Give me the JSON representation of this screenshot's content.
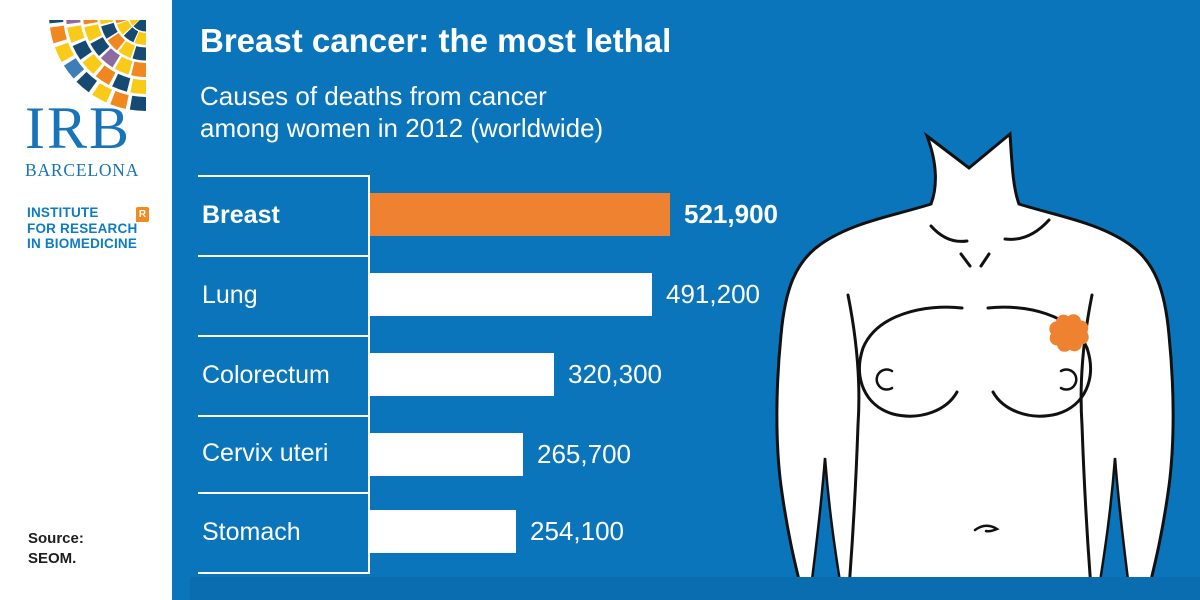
{
  "brand": {
    "logo_acronym": "IRB",
    "logo_city": "BARCELONA",
    "institute_lines": [
      "INSTITUTE",
      "FOR RESEARCH",
      "IN BIOMEDICINE"
    ],
    "registered_mark": "R",
    "logo_blue": "#1874B8",
    "institute_blue": "#0C7CC4",
    "mosaic_palette": {
      "navy": "#164A72",
      "yellow": "#F9CA18",
      "orange": "#F0871F",
      "purple": "#8C6BA1",
      "steelblue": "#3C7EB5"
    }
  },
  "header": {
    "title": "Breast cancer: the most lethal",
    "subtitle_line1": "Causes of deaths from cancer",
    "subtitle_line2": "among women in 2012 (worldwide)"
  },
  "source": {
    "label": "Source:",
    "name": "SEOM."
  },
  "chart_data": {
    "type": "bar",
    "orientation": "horizontal",
    "title": "Breast cancer: the most lethal",
    "subtitle": "Causes of deaths from cancer among women in 2012 (worldwide)",
    "categories": [
      "Breast",
      "Lung",
      "Colorectum",
      "Cervix uteri",
      "Stomach"
    ],
    "values": [
      521900,
      491200,
      320300,
      265700,
      254100
    ],
    "value_labels": [
      "521,900",
      "491,200",
      "320,300",
      "265,700",
      "254,100"
    ],
    "highlight_index": 0,
    "highlight_color": "#EE8230",
    "bar_color": "#FFFFFF",
    "xlim": [
      0,
      521900
    ],
    "grid": "row-separators",
    "legend": "none"
  },
  "illustration": {
    "name": "female-torso",
    "tumor_color": "#EE8230",
    "outline_color": "#111111"
  },
  "colors": {
    "background": "#0A75BB",
    "sidebar": "#FFFFFF",
    "text": "#FFFFFF"
  }
}
